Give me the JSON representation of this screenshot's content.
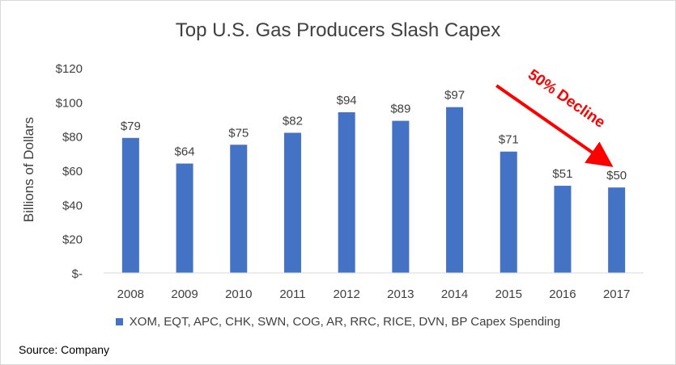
{
  "chart_data": {
    "type": "bar",
    "title": "Top U.S. Gas Producers Slash Capex",
    "ylabel": "Billions of Dollars",
    "xlabel": "",
    "categories": [
      "2008",
      "2009",
      "2010",
      "2011",
      "2012",
      "2013",
      "2014",
      "2015",
      "2016",
      "2017"
    ],
    "series": [
      {
        "name": "XOM, EQT, APC, CHK, SWN, COG, AR, RRC, RICE, DVN, BP Capex Spending",
        "values": [
          79,
          64,
          75,
          82,
          94,
          89,
          97,
          71,
          51,
          50
        ],
        "color": "#4472C4"
      }
    ],
    "data_labels": [
      "$79",
      "$64",
      "$75",
      "$82",
      "$94",
      "$89",
      "$97",
      "$71",
      "$51",
      "$50"
    ],
    "ylim": [
      0,
      120
    ],
    "yticks": [
      0,
      20,
      40,
      60,
      80,
      100,
      120
    ],
    "ytick_labels": [
      "$-",
      "$20",
      "$40",
      "$60",
      "$80",
      "$100",
      "$120"
    ],
    "grid": false,
    "legend_position": "bottom",
    "annotation": {
      "text": "50% Decline",
      "color": "#FF0000",
      "from_category": "2015",
      "to_category": "2017"
    }
  },
  "source": "Source: Company"
}
